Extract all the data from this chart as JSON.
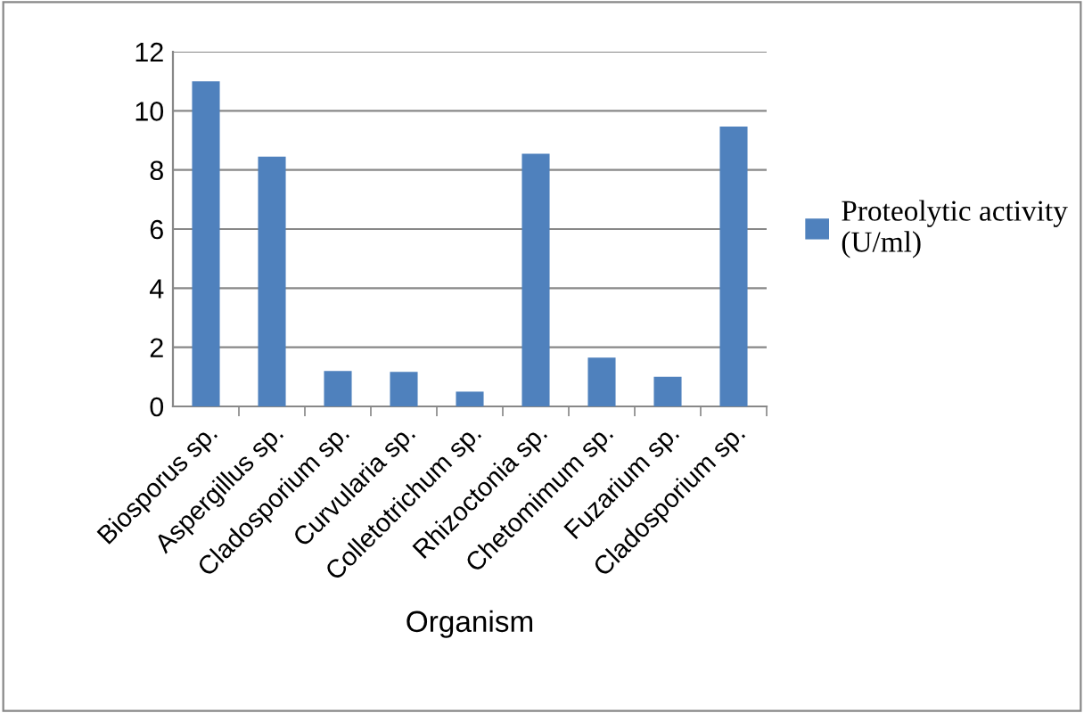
{
  "chart_data": {
    "type": "bar",
    "xlabel": "Organism",
    "categories": [
      "Biosporus sp.",
      "Aspergillus sp.",
      "Cladosporium sp.",
      "Curvularia sp.",
      "Colletotrichum sp.",
      "Rhizoctonia sp.",
      "Chetomimum sp.",
      "Fuzarium sp.",
      "Cladosporium sp."
    ],
    "series": [
      {
        "name": "Proteolytic activity\n(U/ml)",
        "color": "#4f81bd",
        "values": [
          11,
          8.45,
          1.2,
          1.17,
          0.5,
          8.55,
          1.65,
          1.0,
          9.47
        ]
      }
    ],
    "ylim": [
      0,
      12
    ],
    "yticks": [
      0,
      2,
      4,
      6,
      8,
      10,
      12
    ],
    "grid": "y",
    "legend": "right"
  }
}
